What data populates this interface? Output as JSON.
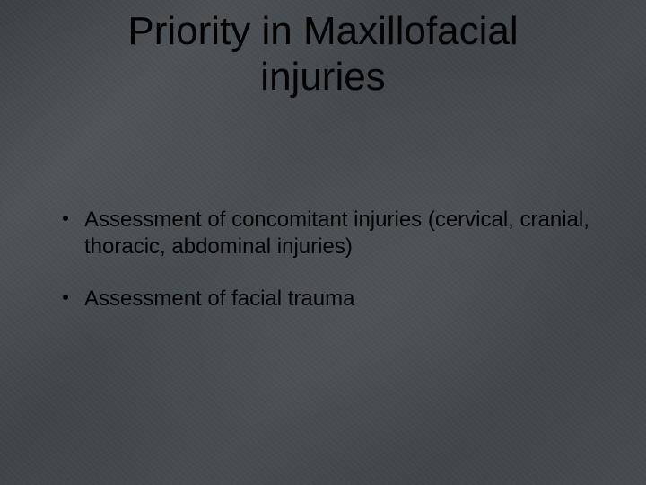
{
  "slide": {
    "background_color": "#40464a",
    "text_color": "#000000",
    "title": {
      "line1": "Priority in Maxillofacial",
      "line2": "injuries",
      "fontsize": 44,
      "font_family": "Arial"
    },
    "bullets": [
      {
        "text": "Assessment of concomitant injuries (cervical, cranial, thoracic, abdominal injuries)"
      },
      {
        "text": "Assessment of facial trauma"
      }
    ],
    "bullet_fontsize": 24,
    "bullet_font_family": "Arial"
  }
}
